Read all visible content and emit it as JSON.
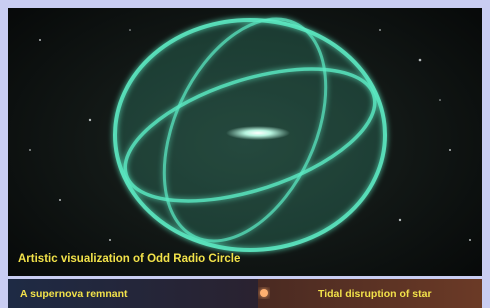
{
  "image": {
    "caption": "Artistic visualization of Odd Radio Circle"
  },
  "panels": [
    {
      "label": "A supernova remnant"
    },
    {
      "label": "Tidal disruption of star"
    }
  ]
}
